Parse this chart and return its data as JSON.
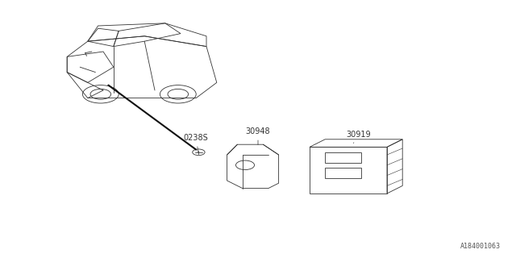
{
  "title": "",
  "background_color": "#ffffff",
  "fig_width": 6.4,
  "fig_height": 3.2,
  "dpi": 100,
  "watermark": "A184001063",
  "labels": {
    "30919": [
      0.715,
      0.44
    ],
    "30948": [
      0.555,
      0.44
    ],
    "0238S": [
      0.415,
      0.44
    ]
  },
  "line_color": "#333333",
  "text_color": "#333333",
  "font_size": 7
}
